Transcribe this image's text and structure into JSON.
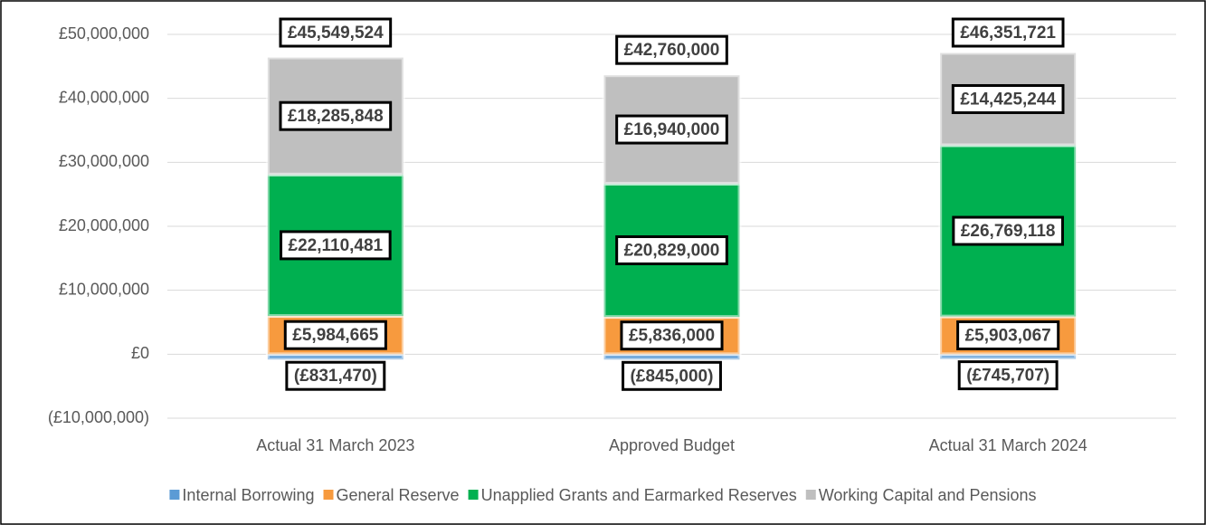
{
  "chart_data": {
    "type": "stacked-bar",
    "categories": [
      "Actual 31 March 2023",
      "Approved Budget",
      "Actual 31 March 2024"
    ],
    "series": [
      {
        "name": "Internal Borrowing",
        "color": "#5b9bd5",
        "values": [
          -831470,
          -845000,
          -745707
        ],
        "value_labels": [
          "(£831,470)",
          "(£845,000)",
          "(£745,707)"
        ]
      },
      {
        "name": "General Reserve",
        "color": "#f79a3e",
        "values": [
          5984665,
          5836000,
          5903067
        ],
        "value_labels": [
          "£5,984,665",
          "£5,836,000",
          "£5,903,067"
        ]
      },
      {
        "name": "Unapplied Grants and Earmarked Reserves",
        "color": "#00b050",
        "values": [
          22110481,
          20829000,
          26769118
        ],
        "value_labels": [
          "£22,110,481",
          "£20,829,000",
          "£26,769,118"
        ]
      },
      {
        "name": "Working Capital and Pensions",
        "color": "#bfbfbf",
        "values": [
          18285848,
          16940000,
          14425244
        ],
        "value_labels": [
          "£18,285,848",
          "£16,940,000",
          "£14,425,244"
        ]
      }
    ],
    "totals": [
      45549524,
      42760000,
      46351721
    ],
    "total_labels": [
      "£45,549,524",
      "£42,760,000",
      "£46,351,721"
    ],
    "ylim": [
      -10000000,
      50000000
    ],
    "yticks": [
      {
        "value": -10000000,
        "label": "(£10,000,000)"
      },
      {
        "value": 0,
        "label": "£0"
      },
      {
        "value": 10000000,
        "label": "£10,000,000"
      },
      {
        "value": 20000000,
        "label": "£20,000,000"
      },
      {
        "value": 30000000,
        "label": "£30,000,000"
      },
      {
        "value": 40000000,
        "label": "£40,000,000"
      },
      {
        "value": 50000000,
        "label": "£50,000,000"
      }
    ],
    "grid": true,
    "legend": "bottom"
  }
}
